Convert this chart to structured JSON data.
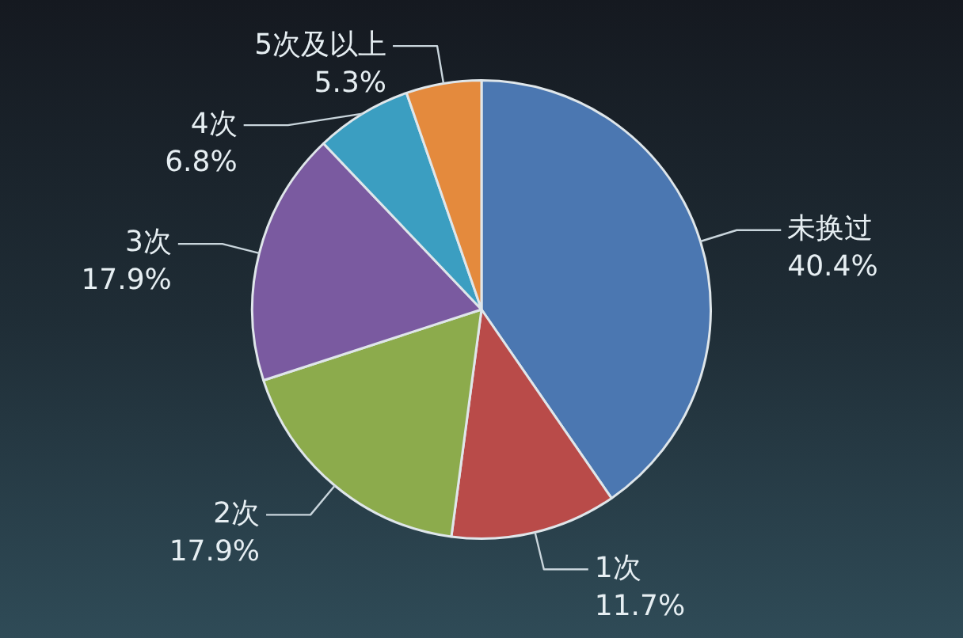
{
  "chart_data": {
    "type": "pie",
    "categories": [
      "未换过",
      "1次",
      "2次",
      "3次",
      "4次",
      "5次及以上"
    ],
    "values": [
      40.4,
      11.7,
      17.9,
      17.9,
      6.8,
      5.3
    ],
    "colors": [
      "#4b77b1",
      "#b94b49",
      "#8cab4c",
      "#7a5aa0",
      "#3b9ec1",
      "#e48a3d"
    ],
    "value_labels": [
      "40.4%",
      "11.7%",
      "17.9%",
      "17.9%",
      "6.8%",
      "5.3%"
    ]
  }
}
